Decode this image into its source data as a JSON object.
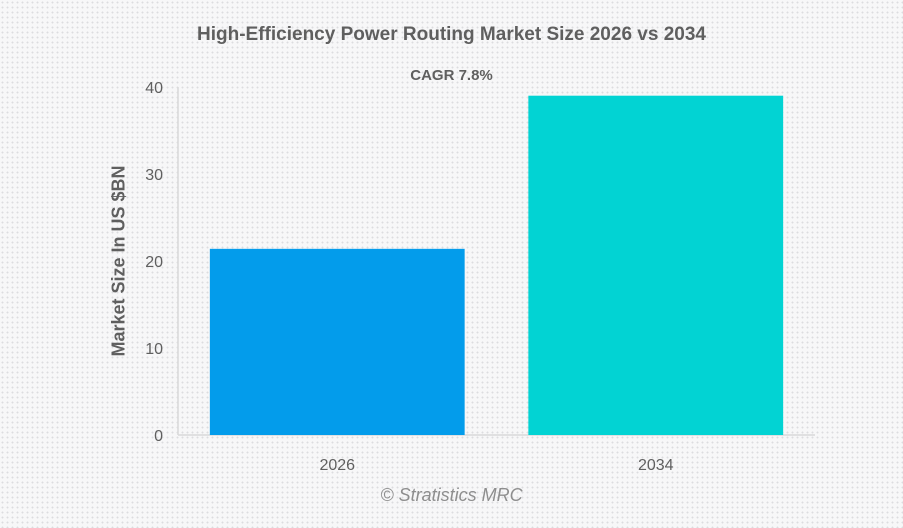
{
  "chart_data": {
    "type": "bar",
    "title": "High-Efficiency Power Routing Market Size 2026 vs 2034",
    "subtitle": "CAGR 7.8%",
    "xlabel": "",
    "ylabel": "Market Size In US $BN",
    "categories": [
      "2026",
      "2034"
    ],
    "values": [
      21.4,
      39.0
    ],
    "colors": [
      "#039ceb",
      "#02d3d3"
    ],
    "ylim": [
      0,
      40
    ],
    "yticks": [
      0,
      10,
      20,
      30,
      40
    ],
    "grid": false,
    "legend": "none",
    "credit": "© Stratistics MRC"
  }
}
